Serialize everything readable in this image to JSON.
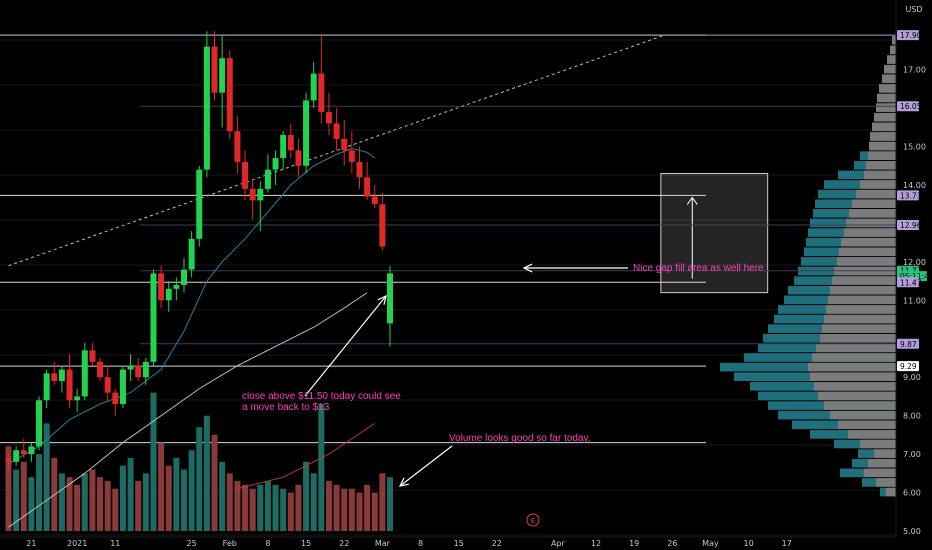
{
  "chart_data": {
    "type": "candlestick",
    "currency_label": "USD",
    "ylim": [
      5.0,
      18.5
    ],
    "y_ticks": [
      "17.00",
      "15.00",
      "14.00",
      "12.00",
      "11.00",
      "9.00",
      "8.00",
      "7.00",
      "6.00",
      "5.00"
    ],
    "x_tick_labels": [
      {
        "label": "21",
        "i": 3
      },
      {
        "label": "2021",
        "i": 9
      },
      {
        "label": "11",
        "i": 14
      },
      {
        "label": "25",
        "i": 24
      },
      {
        "label": "Feb",
        "i": 29
      },
      {
        "label": "8",
        "i": 34
      },
      {
        "label": "15",
        "i": 39
      },
      {
        "label": "22",
        "i": 44
      },
      {
        "label": "Mar",
        "i": 49
      },
      {
        "label": "8",
        "i": 54
      },
      {
        "label": "15",
        "i": 59
      },
      {
        "label": "22",
        "i": 64
      },
      {
        "label": "Apr",
        "i": 72
      },
      {
        "label": "12",
        "i": 77
      },
      {
        "label": "19",
        "i": 82
      },
      {
        "label": "26",
        "i": 87
      },
      {
        "label": "May",
        "i": 92
      },
      {
        "label": "10",
        "i": 97
      },
      {
        "label": "17",
        "i": 102
      }
    ],
    "price_tags": [
      {
        "value": "17.90",
        "y": 17.9,
        "color": "#b39ddb",
        "text": "#000"
      },
      {
        "value": "16.05",
        "y": 16.05,
        "color": "#b39ddb",
        "text": "#000"
      },
      {
        "value": "13.73",
        "y": 13.73,
        "color": "#b39ddb",
        "text": "#000"
      },
      {
        "value": "12.96",
        "y": 12.96,
        "color": "#b39ddb",
        "text": "#000"
      },
      {
        "value": "11.77",
        "y": 11.77,
        "color": "#26c281",
        "text": "#000"
      },
      {
        "value": "05:11:41",
        "y": 11.63,
        "color": "#26c281",
        "text": "#000"
      },
      {
        "value": "11.47",
        "y": 11.47,
        "color": "#b39ddb",
        "text": "#000"
      },
      {
        "value": "9.87",
        "y": 9.87,
        "color": "#b39ddb",
        "text": "#000"
      },
      {
        "value": "9.29",
        "y": 9.29,
        "color": "#ffffff",
        "text": "#000"
      }
    ],
    "horizontal_lines": [
      17.9,
      13.73,
      11.47,
      9.29,
      7.3
    ],
    "faint_lines": [
      16.05,
      12.96,
      11.77,
      9.87
    ],
    "candles": [
      [
        6.9,
        7.0,
        6.6,
        6.8
      ],
      [
        6.8,
        7.2,
        6.7,
        7.1
      ],
      [
        7.1,
        7.4,
        6.9,
        7.0
      ],
      [
        7.0,
        7.3,
        6.8,
        7.2
      ],
      [
        7.2,
        8.5,
        7.1,
        8.4
      ],
      [
        8.4,
        9.2,
        8.2,
        9.1
      ],
      [
        9.1,
        9.4,
        8.8,
        8.9
      ],
      [
        8.9,
        9.3,
        8.6,
        9.2
      ],
      [
        9.2,
        9.6,
        8.2,
        8.4
      ],
      [
        8.4,
        8.7,
        8.1,
        8.5
      ],
      [
        8.5,
        9.9,
        8.4,
        9.7
      ],
      [
        9.7,
        9.9,
        9.3,
        9.4
      ],
      [
        9.4,
        9.5,
        8.9,
        9.0
      ],
      [
        9.0,
        9.3,
        8.4,
        8.6
      ],
      [
        8.6,
        8.7,
        8.0,
        8.3
      ],
      [
        8.3,
        9.3,
        8.2,
        9.2
      ],
      [
        9.2,
        9.6,
        8.9,
        9.3
      ],
      [
        9.3,
        9.5,
        8.9,
        9.0
      ],
      [
        9.0,
        9.5,
        8.8,
        9.4
      ],
      [
        9.4,
        11.8,
        9.3,
        11.7
      ],
      [
        11.7,
        11.9,
        10.8,
        11.0
      ],
      [
        11.0,
        11.5,
        10.7,
        11.3
      ],
      [
        11.3,
        11.6,
        11.0,
        11.4
      ],
      [
        11.4,
        12.1,
        11.2,
        11.8
      ],
      [
        11.8,
        12.8,
        11.6,
        12.6
      ],
      [
        12.6,
        14.5,
        12.4,
        14.4
      ],
      [
        14.4,
        18.0,
        14.2,
        17.6
      ],
      [
        17.6,
        18.0,
        16.2,
        16.4
      ],
      [
        16.4,
        17.9,
        15.5,
        17.3
      ],
      [
        17.3,
        17.5,
        15.2,
        15.4
      ],
      [
        15.4,
        15.8,
        14.3,
        14.6
      ],
      [
        14.6,
        14.9,
        13.6,
        13.9
      ],
      [
        13.9,
        14.1,
        13.1,
        13.6
      ],
      [
        13.6,
        14.1,
        12.8,
        13.9
      ],
      [
        13.9,
        14.8,
        13.8,
        14.4
      ],
      [
        14.4,
        14.9,
        14.0,
        14.7
      ],
      [
        14.7,
        15.4,
        14.4,
        15.3
      ],
      [
        15.3,
        15.6,
        14.7,
        14.9
      ],
      [
        14.9,
        15.2,
        14.2,
        14.5
      ],
      [
        14.5,
        16.4,
        14.3,
        16.2
      ],
      [
        16.2,
        17.2,
        16.0,
        16.9
      ],
      [
        16.9,
        17.9,
        15.6,
        15.9
      ],
      [
        15.9,
        16.4,
        15.3,
        15.6
      ],
      [
        15.6,
        16.0,
        14.9,
        15.2
      ],
      [
        15.2,
        15.7,
        14.5,
        14.9
      ],
      [
        14.9,
        15.4,
        14.3,
        14.6
      ],
      [
        14.6,
        15.0,
        13.9,
        14.2
      ],
      [
        14.2,
        14.6,
        13.6,
        13.7
      ],
      [
        13.7,
        14.0,
        13.4,
        13.5
      ],
      [
        13.5,
        13.8,
        12.3,
        12.4
      ],
      [
        10.4,
        11.9,
        9.8,
        11.7
      ]
    ],
    "volumes": [
      [
        7.2,
        "down"
      ],
      [
        6.6,
        "up"
      ],
      [
        6.8,
        "down"
      ],
      [
        6.4,
        "up"
      ],
      [
        7.0,
        "up"
      ],
      [
        7.8,
        "up"
      ],
      [
        6.9,
        "down"
      ],
      [
        6.5,
        "up"
      ],
      [
        6.4,
        "down"
      ],
      [
        6.2,
        "down"
      ],
      [
        6.5,
        "up"
      ],
      [
        6.6,
        "down"
      ],
      [
        6.4,
        "down"
      ],
      [
        6.3,
        "down"
      ],
      [
        6.1,
        "down"
      ],
      [
        6.7,
        "up"
      ],
      [
        6.9,
        "up"
      ],
      [
        6.3,
        "down"
      ],
      [
        6.5,
        "up"
      ],
      [
        8.6,
        "up"
      ],
      [
        7.3,
        "down"
      ],
      [
        6.7,
        "down"
      ],
      [
        6.9,
        "up"
      ],
      [
        6.6,
        "up"
      ],
      [
        7.1,
        "up"
      ],
      [
        7.7,
        "up"
      ],
      [
        8.0,
        "up"
      ],
      [
        7.5,
        "down"
      ],
      [
        6.8,
        "up"
      ],
      [
        6.5,
        "down"
      ],
      [
        6.3,
        "down"
      ],
      [
        6.2,
        "down"
      ],
      [
        6.1,
        "down"
      ],
      [
        6.2,
        "up"
      ],
      [
        6.3,
        "up"
      ],
      [
        6.2,
        "up"
      ],
      [
        6.1,
        "up"
      ],
      [
        6.0,
        "down"
      ],
      [
        6.2,
        "down"
      ],
      [
        6.8,
        "up"
      ],
      [
        6.5,
        "up"
      ],
      [
        8.3,
        "up"
      ],
      [
        6.3,
        "down"
      ],
      [
        6.2,
        "down"
      ],
      [
        6.1,
        "down"
      ],
      [
        6.1,
        "down"
      ],
      [
        6.0,
        "down"
      ],
      [
        6.2,
        "down"
      ],
      [
        6.0,
        "down"
      ],
      [
        6.5,
        "down"
      ],
      [
        6.4,
        "up"
      ]
    ],
    "ma_short": [
      [
        0,
        6.75
      ],
      [
        4,
        7.2
      ],
      [
        8,
        7.9
      ],
      [
        12,
        8.3
      ],
      [
        16,
        8.6
      ],
      [
        20,
        9.2
      ],
      [
        23,
        10.2
      ],
      [
        26,
        11.5
      ],
      [
        28,
        12.0
      ],
      [
        31,
        12.6
      ],
      [
        34,
        13.3
      ],
      [
        37,
        14.0
      ],
      [
        40,
        14.5
      ],
      [
        43,
        14.8
      ],
      [
        45,
        14.95
      ],
      [
        47,
        14.85
      ],
      [
        48,
        14.7
      ]
    ],
    "ma_long": [
      [
        0,
        5.1
      ],
      [
        5,
        5.8
      ],
      [
        10,
        6.5
      ],
      [
        15,
        7.3
      ],
      [
        20,
        8.0
      ],
      [
        25,
        8.7
      ],
      [
        30,
        9.3
      ],
      [
        35,
        9.8
      ],
      [
        40,
        10.3
      ],
      [
        44,
        10.8
      ],
      [
        47,
        11.2
      ]
    ],
    "trendline": {
      "from": [
        0,
        11.9
      ],
      "to": [
        86,
        17.9
      ]
    },
    "volume_ma": [
      [
        30,
        6.1
      ],
      [
        36,
        6.4
      ],
      [
        42,
        7.0
      ],
      [
        48,
        7.8
      ]
    ],
    "volume_profile": [
      [
        17.75,
        4,
        0
      ],
      [
        17.5,
        6,
        2
      ],
      [
        17.25,
        9,
        3
      ],
      [
        17.0,
        12,
        4
      ],
      [
        16.75,
        14,
        5
      ],
      [
        16.5,
        17,
        7
      ],
      [
        16.25,
        19,
        9
      ],
      [
        16.0,
        20,
        13
      ],
      [
        15.75,
        22,
        18
      ],
      [
        15.5,
        24,
        21
      ],
      [
        15.25,
        26,
        23
      ],
      [
        15.0,
        27,
        26
      ],
      [
        14.75,
        28,
        36
      ],
      [
        14.5,
        30,
        42
      ],
      [
        14.25,
        32,
        58
      ],
      [
        14.0,
        36,
        72
      ],
      [
        13.75,
        40,
        78
      ],
      [
        13.5,
        44,
        81
      ],
      [
        13.25,
        47,
        83
      ],
      [
        13.0,
        50,
        86
      ],
      [
        12.75,
        52,
        88
      ],
      [
        12.5,
        55,
        90
      ],
      [
        12.25,
        57,
        92
      ],
      [
        12.0,
        59,
        95
      ],
      [
        11.75,
        62,
        98
      ],
      [
        11.5,
        64,
        102
      ],
      [
        11.25,
        66,
        108
      ],
      [
        11.0,
        68,
        112
      ],
      [
        10.75,
        70,
        118
      ],
      [
        10.5,
        72,
        122
      ],
      [
        10.25,
        74,
        128
      ],
      [
        10.0,
        76,
        133
      ],
      [
        9.75,
        80,
        138
      ],
      [
        9.5,
        84,
        152
      ],
      [
        9.25,
        88,
        176
      ],
      [
        9.0,
        86,
        162
      ],
      [
        8.75,
        82,
        146
      ],
      [
        8.5,
        78,
        138
      ],
      [
        8.25,
        72,
        128
      ],
      [
        8.0,
        66,
        118
      ],
      [
        7.75,
        58,
        104
      ],
      [
        7.5,
        48,
        86
      ],
      [
        7.25,
        36,
        62
      ],
      [
        7.0,
        22,
        38
      ],
      [
        6.75,
        28,
        44
      ],
      [
        6.5,
        32,
        56
      ],
      [
        6.25,
        20,
        34
      ],
      [
        6.0,
        10,
        16
      ]
    ],
    "profile_colors": {
      "gray": "#7b7b7b",
      "teal": "#1f6f7c",
      "olive": "#6b6b1f"
    },
    "value_area_box": {
      "y_top": 14.3,
      "y_bottom": 11.2,
      "i_left": 85.5,
      "i_right": 99.5
    },
    "annotations": [
      "Nice gap fill area as well here",
      "close above $11.50 today could see",
      "a move back to $13",
      "Volume looks good so far today."
    ],
    "event_marker": "E",
    "colors": {
      "up": "#22d34f",
      "down": "#e02828",
      "vol_up": "#1d6b63",
      "vol_down": "#8b3a3a",
      "annotation": "#ff3fb8",
      "ma_short": "#2a7f9a",
      "ma_long": "#bcbcbc",
      "grid": "#181818"
    }
  }
}
